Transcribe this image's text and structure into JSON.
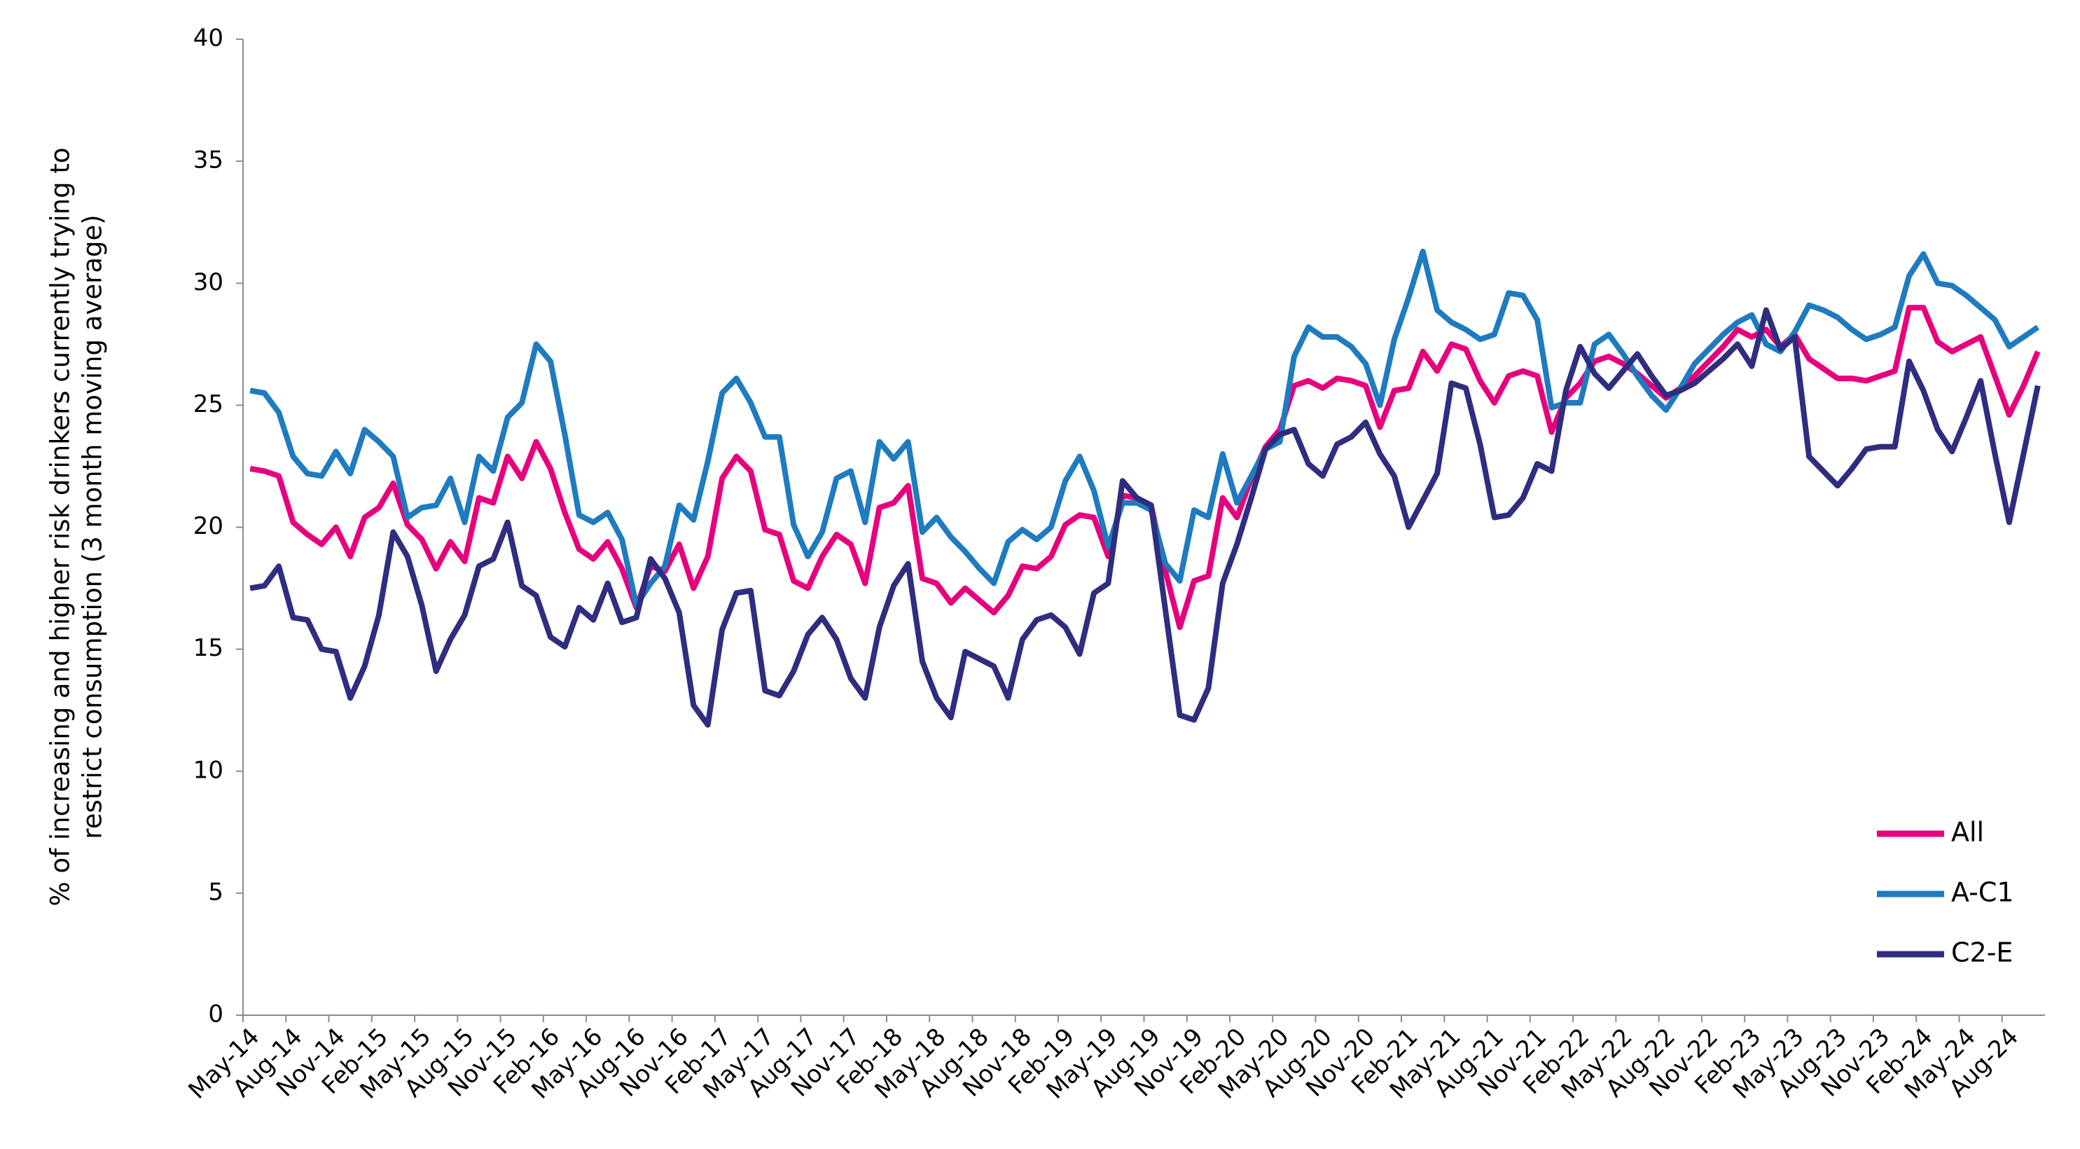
{
  "chart_data": {
    "type": "line",
    "ylabel": [
      "% of increasing and higher risk drinkers currently trying to",
      "restrict consumption (3 month moving average)"
    ],
    "categories": [
      "May-14",
      null,
      null,
      "Aug-14",
      null,
      null,
      "Nov-14",
      null,
      null,
      "Feb-15",
      null,
      null,
      "May-15",
      null,
      null,
      "Aug-15",
      null,
      null,
      "Nov-15",
      null,
      null,
      "Feb-16",
      null,
      null,
      "May-16",
      null,
      null,
      "Aug-16",
      null,
      null,
      "Nov-16",
      null,
      null,
      "Feb-17",
      null,
      null,
      "May-17",
      null,
      null,
      "Aug-17",
      null,
      null,
      "Nov-17",
      null,
      null,
      "Feb-18",
      null,
      null,
      "May-18",
      null,
      null,
      "Aug-18",
      null,
      null,
      "Nov-18",
      null,
      null,
      "Feb-19",
      null,
      null,
      "May-19",
      null,
      null,
      "Aug-19",
      null,
      null,
      "Nov-19",
      null,
      null,
      "Feb-20",
      null,
      null,
      "May-20",
      null,
      null,
      "Aug-20",
      null,
      null,
      "Nov-20",
      null,
      null,
      "Feb-21",
      null,
      null,
      "May-21",
      null,
      null,
      "Aug-21",
      null,
      null,
      "Nov-21",
      null,
      null,
      "Feb-22",
      null,
      null,
      "May-22",
      null,
      null,
      "Aug-22",
      null,
      null,
      "Nov-22",
      null,
      null,
      "Feb-23",
      null,
      null,
      "May-23",
      null,
      null,
      "Aug-23",
      null,
      null,
      "Nov-23",
      null,
      null,
      "Feb-24",
      null,
      null,
      "May-24",
      null,
      null,
      "Aug-24",
      null,
      null
    ],
    "series": [
      {
        "name": "All",
        "color": "#e6007e",
        "values": [
          22.4,
          22.3,
          22.1,
          20.2,
          19.7,
          19.3,
          20.0,
          18.8,
          20.4,
          20.8,
          21.8,
          20.1,
          19.5,
          18.3,
          19.4,
          18.6,
          21.2,
          21.0,
          22.9,
          22.0,
          23.5,
          22.4,
          20.6,
          19.1,
          18.7,
          19.4,
          18.3,
          16.7,
          18.4,
          18.2,
          19.3,
          17.5,
          18.8,
          22.0,
          22.9,
          22.3,
          19.9,
          19.7,
          17.8,
          17.5,
          18.8,
          19.7,
          19.3,
          17.7,
          20.8,
          21.0,
          21.7,
          17.9,
          17.7,
          16.9,
          17.5,
          17.0,
          16.5,
          17.2,
          18.4,
          18.3,
          18.8,
          20.1,
          20.5,
          20.4,
          18.8,
          21.3,
          21.2,
          20.9,
          18.2,
          15.9,
          17.8,
          18.0,
          21.2,
          20.4,
          22.0,
          23.3,
          24.0,
          25.8,
          26.0,
          25.7,
          26.1,
          26.0,
          25.8,
          24.1,
          25.6,
          25.7,
          27.2,
          26.4,
          27.5,
          27.3,
          26.0,
          25.1,
          26.2,
          26.4,
          26.2,
          23.9,
          25.3,
          25.9,
          26.8,
          27.0,
          26.7,
          26.3,
          25.8,
          25.3,
          25.7,
          26.2,
          26.8,
          27.4,
          28.1,
          27.8,
          28.1,
          27.4,
          27.9,
          26.9,
          26.5,
          26.1,
          26.1,
          26.0,
          26.2,
          26.4,
          29.0,
          29.0,
          27.6,
          27.2,
          27.5,
          27.8,
          26.2,
          24.6,
          25.8,
          27.2
        ]
      },
      {
        "name": "A-C1",
        "color": "#1f7bbf",
        "values": [
          25.6,
          25.5,
          24.7,
          22.9,
          22.2,
          22.1,
          23.1,
          22.2,
          24.0,
          23.5,
          22.9,
          20.4,
          20.8,
          20.9,
          22.0,
          20.2,
          22.9,
          22.3,
          24.5,
          25.1,
          27.5,
          26.8,
          23.8,
          20.5,
          20.2,
          20.6,
          19.5,
          16.8,
          17.7,
          18.4,
          20.9,
          20.3,
          22.7,
          25.5,
          26.1,
          25.1,
          23.7,
          23.7,
          20.1,
          18.8,
          19.8,
          22.0,
          22.3,
          20.2,
          23.5,
          22.8,
          23.5,
          19.8,
          20.4,
          19.6,
          19.0,
          18.3,
          17.7,
          19.4,
          19.9,
          19.5,
          20.0,
          21.9,
          22.9,
          21.5,
          19.2,
          21.0,
          21.0,
          20.7,
          18.5,
          17.8,
          20.7,
          20.4,
          23.0,
          21.0,
          22.1,
          23.2,
          23.5,
          27.0,
          28.2,
          27.8,
          27.8,
          27.4,
          26.7,
          25.0,
          27.7,
          29.4,
          31.3,
          28.9,
          28.4,
          28.1,
          27.7,
          27.9,
          29.6,
          29.5,
          28.5,
          24.9,
          25.1,
          25.1,
          27.5,
          27.9,
          27.1,
          26.2,
          25.4,
          24.8,
          25.7,
          26.7,
          27.3,
          27.9,
          28.4,
          28.7,
          27.5,
          27.2,
          28.0,
          29.1,
          28.9,
          28.6,
          28.1,
          27.7,
          27.9,
          28.2,
          30.3,
          31.2,
          30.0,
          29.9,
          29.5,
          29.0,
          28.5,
          27.4,
          27.8,
          28.2
        ]
      },
      {
        "name": "C2-E",
        "color": "#2e2d7f",
        "values": [
          17.5,
          17.6,
          18.4,
          16.3,
          16.2,
          15.0,
          14.9,
          13.0,
          14.3,
          16.4,
          19.8,
          18.8,
          16.8,
          14.1,
          15.4,
          16.4,
          18.4,
          18.7,
          20.2,
          17.6,
          17.2,
          15.5,
          15.1,
          16.7,
          16.2,
          17.7,
          16.1,
          16.3,
          18.7,
          17.9,
          16.5,
          12.7,
          11.9,
          15.8,
          17.3,
          17.4,
          13.3,
          13.1,
          14.1,
          15.6,
          16.3,
          15.4,
          13.8,
          13.0,
          15.9,
          17.6,
          18.5,
          14.5,
          13.0,
          12.2,
          14.9,
          14.6,
          14.3,
          13.0,
          15.4,
          16.2,
          16.4,
          15.9,
          14.8,
          17.3,
          17.7,
          21.9,
          21.2,
          20.9,
          16.6,
          12.3,
          12.1,
          13.4,
          17.7,
          19.3,
          21.2,
          23.2,
          23.8,
          24.0,
          22.6,
          22.1,
          23.4,
          23.7,
          24.3,
          23.0,
          22.1,
          20.0,
          21.1,
          22.2,
          25.9,
          25.7,
          23.4,
          20.4,
          20.5,
          21.2,
          22.6,
          22.3,
          25.6,
          27.4,
          26.3,
          25.7,
          26.4,
          27.1,
          26.2,
          25.4,
          25.6,
          25.9,
          26.4,
          26.9,
          27.5,
          26.6,
          28.9,
          27.3,
          27.8,
          22.9,
          22.3,
          21.7,
          22.4,
          23.2,
          23.3,
          23.3,
          26.8,
          25.6,
          24.0,
          23.1,
          24.5,
          26.0,
          23.0,
          20.2,
          23.0,
          25.8
        ]
      }
    ],
    "ylim": [
      0,
      40
    ],
    "yticks": [
      0,
      5,
      10,
      15,
      20,
      25,
      30,
      35,
      40
    ],
    "grid": false,
    "legend": "lower right"
  }
}
